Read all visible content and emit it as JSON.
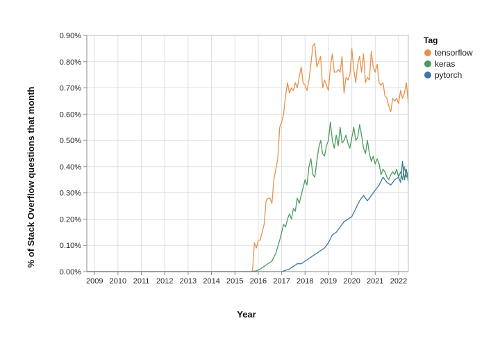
{
  "chart_data": {
    "type": "line",
    "xlabel": "Year",
    "ylabel": "% of Stack Overflow questions that month",
    "x_ticks": [
      "2009",
      "2010",
      "2011",
      "2012",
      "2013",
      "2014",
      "2015",
      "2016",
      "2017",
      "2018",
      "2019",
      "2020",
      "2021",
      "2022"
    ],
    "y_ticks": [
      "0.00%",
      "0.10%",
      "0.20%",
      "0.30%",
      "0.40%",
      "0.50%",
      "0.60%",
      "0.70%",
      "0.80%",
      "0.90%"
    ],
    "xlim": [
      "2008-09",
      "2022-06"
    ],
    "ylim": [
      0,
      0.9
    ],
    "grid": true,
    "legend": {
      "title": "Tag",
      "placement": "top-right"
    },
    "series": [
      {
        "name": "tensorflow",
        "color": "#e8914a",
        "points": [
          [
            "2008-09",
            0
          ],
          [
            "2015-10",
            0
          ],
          [
            "2015-11",
            0.11
          ],
          [
            "2015-12",
            0.09
          ],
          [
            "2016-01",
            0.12
          ],
          [
            "2016-02",
            0.12
          ],
          [
            "2016-03",
            0.15
          ],
          [
            "2016-04",
            0.18
          ],
          [
            "2016-05",
            0.27
          ],
          [
            "2016-06",
            0.28
          ],
          [
            "2016-07",
            0.28
          ],
          [
            "2016-08",
            0.26
          ],
          [
            "2016-09",
            0.35
          ],
          [
            "2016-10",
            0.39
          ],
          [
            "2016-11",
            0.43
          ],
          [
            "2016-12",
            0.55
          ],
          [
            "2017-01",
            0.57
          ],
          [
            "2017-02",
            0.6
          ],
          [
            "2017-03",
            0.67
          ],
          [
            "2017-04",
            0.72
          ],
          [
            "2017-05",
            0.68
          ],
          [
            "2017-06",
            0.7
          ],
          [
            "2017-07",
            0.69
          ],
          [
            "2017-08",
            0.72
          ],
          [
            "2017-09",
            0.7
          ],
          [
            "2017-10",
            0.74
          ],
          [
            "2017-11",
            0.78
          ],
          [
            "2017-12",
            0.72
          ],
          [
            "2018-01",
            0.71
          ],
          [
            "2018-02",
            0.69
          ],
          [
            "2018-03",
            0.73
          ],
          [
            "2018-04",
            0.79
          ],
          [
            "2018-05",
            0.86
          ],
          [
            "2018-06",
            0.87
          ],
          [
            "2018-07",
            0.78
          ],
          [
            "2018-08",
            0.8
          ],
          [
            "2018-09",
            0.82
          ],
          [
            "2018-10",
            0.7
          ],
          [
            "2018-11",
            0.73
          ],
          [
            "2018-12",
            0.71
          ],
          [
            "2019-01",
            0.69
          ],
          [
            "2019-02",
            0.78
          ],
          [
            "2019-03",
            0.83
          ],
          [
            "2019-04",
            0.76
          ],
          [
            "2019-05",
            0.76
          ],
          [
            "2019-06",
            0.77
          ],
          [
            "2019-07",
            0.76
          ],
          [
            "2019-08",
            0.82
          ],
          [
            "2019-09",
            0.68
          ],
          [
            "2019-10",
            0.74
          ],
          [
            "2019-11",
            0.73
          ],
          [
            "2019-12",
            0.75
          ],
          [
            "2020-01",
            0.85
          ],
          [
            "2020-02",
            0.77
          ],
          [
            "2020-03",
            0.72
          ],
          [
            "2020-04",
            0.79
          ],
          [
            "2020-05",
            0.82
          ],
          [
            "2020-06",
            0.76
          ],
          [
            "2020-07",
            0.83
          ],
          [
            "2020-08",
            0.72
          ],
          [
            "2020-09",
            0.74
          ],
          [
            "2020-10",
            0.73
          ],
          [
            "2020-11",
            0.84
          ],
          [
            "2020-12",
            0.78
          ],
          [
            "2021-01",
            0.76
          ],
          [
            "2021-02",
            0.79
          ],
          [
            "2021-03",
            0.72
          ],
          [
            "2021-04",
            0.71
          ],
          [
            "2021-05",
            0.72
          ],
          [
            "2021-06",
            0.67
          ],
          [
            "2021-07",
            0.66
          ],
          [
            "2021-08",
            0.63
          ],
          [
            "2021-09",
            0.61
          ],
          [
            "2021-10",
            0.66
          ],
          [
            "2021-11",
            0.65
          ],
          [
            "2021-12",
            0.66
          ],
          [
            "2022-01",
            0.64
          ],
          [
            "2022-02",
            0.69
          ],
          [
            "2022-03",
            0.66
          ],
          [
            "2022-04",
            0.68
          ],
          [
            "2022-05",
            0.72
          ],
          [
            "2022-06",
            0.64
          ]
        ]
      },
      {
        "name": "keras",
        "color": "#4a9b5e",
        "points": [
          [
            "2008-09",
            0
          ],
          [
            "2015-09",
            0
          ],
          [
            "2015-12",
            0.003
          ],
          [
            "2016-02",
            0.01
          ],
          [
            "2016-04",
            0.02
          ],
          [
            "2016-06",
            0.03
          ],
          [
            "2016-08",
            0.04
          ],
          [
            "2016-10",
            0.07
          ],
          [
            "2016-12",
            0.12
          ],
          [
            "2017-01",
            0.15
          ],
          [
            "2017-02",
            0.18
          ],
          [
            "2017-03",
            0.17
          ],
          [
            "2017-04",
            0.2
          ],
          [
            "2017-05",
            0.22
          ],
          [
            "2017-06",
            0.2
          ],
          [
            "2017-07",
            0.24
          ],
          [
            "2017-08",
            0.23
          ],
          [
            "2017-09",
            0.28
          ],
          [
            "2017-10",
            0.26
          ],
          [
            "2017-11",
            0.29
          ],
          [
            "2017-12",
            0.32
          ],
          [
            "2018-01",
            0.35
          ],
          [
            "2018-02",
            0.33
          ],
          [
            "2018-03",
            0.4
          ],
          [
            "2018-04",
            0.43
          ],
          [
            "2018-05",
            0.37
          ],
          [
            "2018-06",
            0.36
          ],
          [
            "2018-07",
            0.42
          ],
          [
            "2018-08",
            0.47
          ],
          [
            "2018-09",
            0.5
          ],
          [
            "2018-10",
            0.45
          ],
          [
            "2018-11",
            0.44
          ],
          [
            "2018-12",
            0.48
          ],
          [
            "2019-01",
            0.5
          ],
          [
            "2019-02",
            0.57
          ],
          [
            "2019-03",
            0.5
          ],
          [
            "2019-04",
            0.47
          ],
          [
            "2019-05",
            0.52
          ],
          [
            "2019-06",
            0.48
          ],
          [
            "2019-07",
            0.55
          ],
          [
            "2019-08",
            0.49
          ],
          [
            "2019-09",
            0.5
          ],
          [
            "2019-10",
            0.52
          ],
          [
            "2019-11",
            0.49
          ],
          [
            "2019-12",
            0.47
          ],
          [
            "2020-01",
            0.51
          ],
          [
            "2020-02",
            0.55
          ],
          [
            "2020-03",
            0.5
          ],
          [
            "2020-04",
            0.51
          ],
          [
            "2020-05",
            0.56
          ],
          [
            "2020-06",
            0.52
          ],
          [
            "2020-07",
            0.47
          ],
          [
            "2020-08",
            0.45
          ],
          [
            "2020-09",
            0.5
          ],
          [
            "2020-10",
            0.45
          ],
          [
            "2020-11",
            0.42
          ],
          [
            "2020-12",
            0.44
          ],
          [
            "2021-01",
            0.41
          ],
          [
            "2021-02",
            0.43
          ],
          [
            "2021-03",
            0.41
          ],
          [
            "2021-04",
            0.37
          ],
          [
            "2021-05",
            0.39
          ],
          [
            "2021-06",
            0.38
          ],
          [
            "2021-07",
            0.36
          ],
          [
            "2021-08",
            0.35
          ],
          [
            "2021-09",
            0.37
          ],
          [
            "2021-10",
            0.38
          ],
          [
            "2021-11",
            0.37
          ],
          [
            "2021-12",
            0.39
          ],
          [
            "2022-01",
            0.36
          ],
          [
            "2022-02",
            0.38
          ],
          [
            "2022-03",
            0.35
          ],
          [
            "2022-04",
            0.4
          ],
          [
            "2022-05",
            0.36
          ],
          [
            "2022-06",
            0.38
          ]
        ]
      },
      {
        "name": "pytorch",
        "color": "#3d78a5",
        "points": [
          [
            "2008-09",
            0
          ],
          [
            "2017-01",
            0
          ],
          [
            "2017-03",
            0.005
          ],
          [
            "2017-05",
            0.01
          ],
          [
            "2017-07",
            0.02
          ],
          [
            "2017-09",
            0.03
          ],
          [
            "2017-11",
            0.03
          ],
          [
            "2018-01",
            0.04
          ],
          [
            "2018-03",
            0.05
          ],
          [
            "2018-05",
            0.06
          ],
          [
            "2018-07",
            0.07
          ],
          [
            "2018-09",
            0.08
          ],
          [
            "2018-11",
            0.09
          ],
          [
            "2019-01",
            0.11
          ],
          [
            "2019-03",
            0.14
          ],
          [
            "2019-05",
            0.15
          ],
          [
            "2019-07",
            0.17
          ],
          [
            "2019-09",
            0.19
          ],
          [
            "2019-11",
            0.2
          ],
          [
            "2020-01",
            0.21
          ],
          [
            "2020-03",
            0.24
          ],
          [
            "2020-05",
            0.27
          ],
          [
            "2020-07",
            0.29
          ],
          [
            "2020-09",
            0.27
          ],
          [
            "2020-11",
            0.29
          ],
          [
            "2021-01",
            0.31
          ],
          [
            "2021-03",
            0.33
          ],
          [
            "2021-05",
            0.36
          ],
          [
            "2021-07",
            0.34
          ],
          [
            "2021-09",
            0.33
          ],
          [
            "2021-11",
            0.35
          ],
          [
            "2022-01",
            0.36
          ],
          [
            "2022-02",
            0.34
          ],
          [
            "2022-03",
            0.42
          ],
          [
            "2022-04",
            0.35
          ],
          [
            "2022-05",
            0.39
          ],
          [
            "2022-06",
            0.34
          ]
        ]
      }
    ]
  }
}
